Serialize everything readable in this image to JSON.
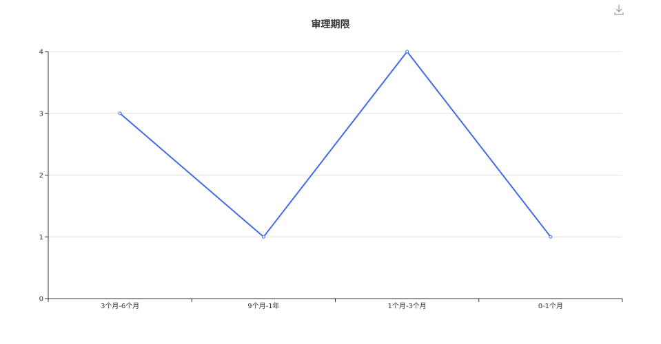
{
  "chart_data": {
    "type": "line",
    "title": "审理期限",
    "categories": [
      "3个月-6个月",
      "9个月-1年",
      "1个月-3个月",
      "0-1个月"
    ],
    "series": [
      {
        "values": [
          3,
          1,
          4,
          1
        ]
      }
    ],
    "y_ticks": [
      "0",
      "1",
      "2",
      "3",
      "4"
    ],
    "ylim": [
      0,
      4
    ],
    "xlabel": "",
    "ylabel": "",
    "grid": true,
    "legend": "none",
    "line_color": "#4169e8",
    "grid_color": "#e0e0e0",
    "axis_color": "#333333"
  },
  "toolbar": {
    "download_icon": "download-icon"
  }
}
